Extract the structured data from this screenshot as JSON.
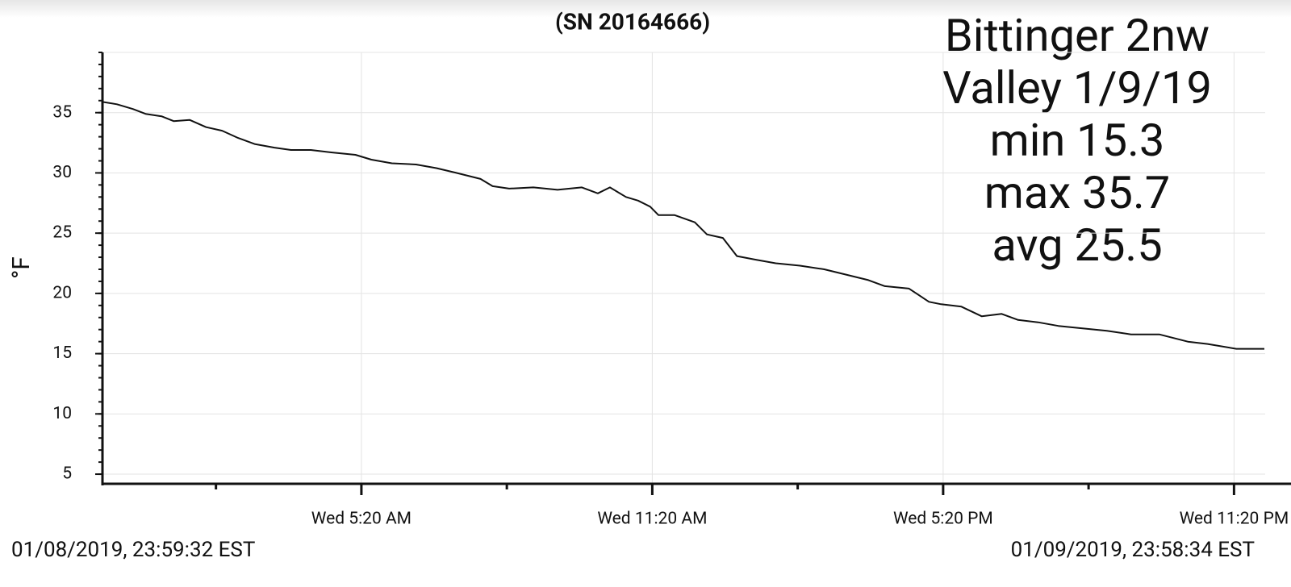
{
  "chart_data": {
    "type": "line",
    "title": "(SN 20164666)",
    "y_label": "°F",
    "annotation": [
      "Bittinger 2nw",
      "Valley 1/9/19",
      "min 15.3",
      "max 35.7",
      "avg 25.5"
    ],
    "start_time": "01/08/2019, 23:59:32 EST",
    "end_time": "01/09/2019, 23:58:34 EST",
    "color": "#111111",
    "grid": true,
    "xlim": [
      -0.008,
      23.976
    ],
    "xticks": [
      {
        "value": 5.333,
        "label": "Wed 5:20 AM"
      },
      {
        "value": 11.333,
        "label": "Wed 11:20 AM"
      },
      {
        "value": 17.333,
        "label": "Wed 5:20 PM"
      },
      {
        "value": 23.333,
        "label": "Wed 11:20 PM"
      }
    ],
    "ylim": [
      4.2,
      40
    ],
    "yticks": [
      5,
      10,
      15,
      20,
      25,
      30,
      35
    ],
    "x": [
      -0.01,
      0.29,
      0.62,
      0.88,
      1.21,
      1.46,
      1.79,
      2.13,
      2.46,
      2.79,
      3.13,
      3.54,
      3.88,
      4.29,
      4.71,
      5.21,
      5.54,
      5.96,
      6.46,
      6.88,
      7.29,
      7.79,
      8.04,
      8.38,
      8.88,
      9.38,
      9.88,
      10.21,
      10.46,
      10.79,
      11.04,
      11.29,
      11.46,
      11.79,
      12.21,
      12.46,
      12.79,
      13.08,
      13.46,
      13.88,
      14.38,
      14.88,
      15.29,
      15.79,
      16.13,
      16.63,
      17.04,
      17.29,
      17.71,
      18.13,
      18.54,
      18.88,
      19.29,
      19.71,
      20.21,
      20.71,
      21.21,
      21.79,
      22.38,
      22.79,
      23.38,
      23.96
    ],
    "values": [
      35.9,
      35.7,
      35.3,
      34.9,
      34.7,
      34.3,
      34.4,
      33.8,
      33.5,
      32.9,
      32.4,
      32.1,
      31.9,
      31.9,
      31.7,
      31.5,
      31.1,
      30.8,
      30.7,
      30.4,
      30.0,
      29.5,
      28.9,
      28.7,
      28.8,
      28.6,
      28.8,
      28.3,
      28.8,
      28.0,
      27.7,
      27.2,
      26.5,
      26.5,
      25.9,
      24.9,
      24.6,
      23.1,
      22.8,
      22.5,
      22.3,
      22.0,
      21.6,
      21.1,
      20.6,
      20.4,
      19.3,
      19.1,
      18.9,
      18.1,
      18.3,
      17.8,
      17.6,
      17.3,
      17.1,
      16.9,
      16.6,
      16.6,
      16.0,
      15.8,
      15.4,
      15.4
    ]
  }
}
